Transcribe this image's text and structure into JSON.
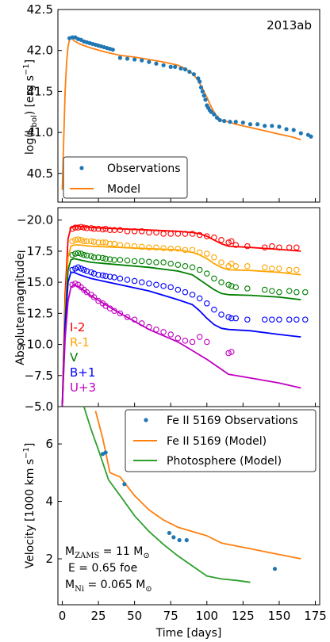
{
  "colors": {
    "obs": "#1f77b4",
    "model_orange": "#ff7f0e",
    "model_green": "#2ca02c",
    "I": "#ff0000",
    "R": "#ffa500",
    "V": "#008000",
    "B": "#0000ff",
    "U": "#c000c0"
  },
  "panel_top": {
    "title": "2013ab",
    "ylabel_parts": [
      "log(L",
      "bol",
      ") [erg s",
      "−1",
      "]"
    ],
    "yticks": [
      "40.5",
      "41.0",
      "41.5",
      "42.0",
      "42.5"
    ],
    "legend": {
      "obs": "Observations",
      "model": "Model"
    }
  },
  "panel_mid": {
    "ylabel": "Absolute magnitude",
    "yticks": [
      "−20.0",
      "−17.5",
      "−15.0",
      "−12.5",
      "−10.0",
      "−7.5",
      "−5.0"
    ],
    "bands": [
      "I-2",
      "R-1",
      "V",
      "B+1",
      "U+3"
    ]
  },
  "panel_bot": {
    "ylabel_parts": [
      "Velocity [1000 km  s",
      "−1",
      "]"
    ],
    "yticks": [
      "2",
      "4",
      "6"
    ],
    "legend": {
      "obs": "Fe II 5169 Observations",
      "fe_model": "Fe II 5169 (Model)",
      "phot_model": "Photosphere (Model)"
    },
    "annot": {
      "mzams_pre": "M",
      "mzams_sub": "ZAMS",
      "mzams_post": " = 11 M",
      "mzams_sun": "⊙",
      "energy": "E = 0.65 foe",
      "mni_pre": "M",
      "mni_sub": "Ni",
      "mni_post": " = 0.065 M",
      "mni_sun": "⊙"
    }
  },
  "xaxis": {
    "label": "Time [days]",
    "ticks": [
      "0",
      "25",
      "50",
      "75",
      "100",
      "125",
      "150",
      "175"
    ]
  },
  "chart_data": [
    {
      "type": "scatter",
      "title": "2013ab",
      "xlabel": "",
      "ylabel": "log(Lbol) [erg s−1]",
      "xlim": [
        -3,
        178
      ],
      "ylim": [
        40.15,
        42.5
      ],
      "series": [
        {
          "name": "Observations",
          "kind": "points",
          "x": [
            5,
            7,
            9,
            11,
            13,
            15,
            17,
            19,
            21,
            23,
            25,
            27,
            29,
            31,
            33,
            35,
            40,
            45,
            50,
            55,
            60,
            65,
            70,
            75,
            78,
            82,
            85,
            88,
            91,
            94,
            95,
            96,
            97,
            98,
            99,
            100,
            101,
            102,
            103,
            105,
            107,
            109,
            112,
            116,
            120,
            125,
            130,
            135,
            140,
            145,
            150,
            155,
            160,
            165,
            170,
            172
          ],
          "y": [
            42.15,
            42.16,
            42.16,
            42.14,
            42.13,
            42.11,
            42.1,
            42.09,
            42.08,
            42.07,
            42.06,
            42.05,
            42.04,
            42.03,
            42.02,
            42.01,
            41.91,
            41.9,
            41.89,
            41.88,
            41.86,
            41.84,
            41.82,
            41.8,
            41.8,
            41.78,
            41.77,
            41.74,
            41.71,
            41.66,
            41.62,
            41.55,
            41.5,
            41.45,
            41.4,
            41.33,
            41.3,
            41.27,
            41.25,
            41.22,
            41.18,
            41.15,
            41.14,
            41.13,
            41.13,
            41.12,
            41.1,
            41.1,
            41.08,
            41.08,
            41.07,
            41.04,
            41.03,
            40.99,
            40.97,
            40.95
          ]
        },
        {
          "name": "Model",
          "kind": "line",
          "x": [
            0,
            1,
            2,
            3,
            4,
            5,
            6,
            7,
            8,
            10,
            12,
            15,
            20,
            30,
            40,
            50,
            60,
            70,
            80,
            85,
            90,
            92,
            94,
            96,
            98,
            100,
            102,
            104,
            106,
            108,
            110,
            112,
            115,
            120,
            130,
            140,
            150,
            160,
            165
          ],
          "y": [
            40.3,
            40.9,
            41.5,
            41.85,
            42.05,
            42.13,
            42.16,
            42.15,
            42.12,
            42.1,
            42.08,
            42.06,
            42.03,
            41.98,
            41.94,
            41.92,
            41.89,
            41.86,
            41.82,
            41.78,
            41.72,
            41.68,
            41.63,
            41.57,
            41.5,
            41.43,
            41.35,
            41.28,
            41.22,
            41.18,
            41.15,
            41.14,
            41.13,
            41.1,
            41.06,
            41.02,
            40.98,
            40.94,
            40.91
          ]
        }
      ],
      "legend": "bottom-left"
    },
    {
      "type": "scatter",
      "xlabel": "",
      "ylabel": "Absolute magnitude",
      "xlim": [
        -3,
        178
      ],
      "ylim": [
        -5.0,
        -21.0
      ],
      "series": [
        {
          "name": "I-2",
          "color": "I",
          "obs_x": [
            7,
            9,
            11,
            13,
            15,
            17,
            20,
            22,
            25,
            28,
            30,
            33,
            36,
            40,
            45,
            50,
            55,
            60,
            65,
            70,
            75,
            80,
            85,
            90,
            95,
            100,
            105,
            110,
            115,
            117,
            120,
            128,
            140,
            145,
            150,
            157,
            162
          ],
          "obs_y": [
            -19.3,
            -19.4,
            -19.4,
            -19.45,
            -19.4,
            -19.35,
            -19.35,
            -19.3,
            -19.3,
            -19.25,
            -19.3,
            -19.2,
            -19.2,
            -19.2,
            -19.1,
            -19.1,
            -19.1,
            -19.0,
            -19.0,
            -18.9,
            -18.9,
            -18.9,
            -18.9,
            -18.9,
            -18.8,
            -18.7,
            -18.6,
            -18.4,
            -18.2,
            -18.3,
            -18.0,
            -17.9,
            -17.8,
            -17.9,
            -17.8,
            -17.8,
            -17.8
          ],
          "model_x": [
            0,
            2,
            4,
            6,
            8,
            12,
            20,
            40,
            60,
            80,
            90,
            95,
            100,
            105,
            110,
            115,
            130,
            150,
            165
          ],
          "model_y": [
            -5.0,
            -14.0,
            -18.5,
            -19.4,
            -19.5,
            -19.5,
            -19.4,
            -19.3,
            -19.2,
            -19.1,
            -19.0,
            -18.9,
            -18.7,
            -18.4,
            -18.1,
            -17.9,
            -17.8,
            -17.65,
            -17.5
          ]
        },
        {
          "name": "R-1",
          "color": "R",
          "obs_x": [
            7,
            9,
            11,
            13,
            15,
            17,
            20,
            22,
            25,
            28,
            30,
            33,
            36,
            40,
            45,
            50,
            55,
            60,
            65,
            70,
            75,
            80,
            85,
            90,
            95,
            100,
            105,
            110,
            115,
            117,
            120,
            128,
            140,
            145,
            150,
            157,
            162
          ],
          "obs_y": [
            -18.3,
            -18.4,
            -18.45,
            -18.4,
            -18.3,
            -18.3,
            -18.3,
            -18.25,
            -18.2,
            -18.2,
            -18.2,
            -18.1,
            -18.1,
            -18.0,
            -17.95,
            -17.9,
            -17.85,
            -17.8,
            -17.8,
            -17.75,
            -17.7,
            -17.7,
            -17.6,
            -17.6,
            -17.4,
            -17.3,
            -17.0,
            -16.6,
            -16.3,
            -16.5,
            -16.3,
            -16.3,
            -16.2,
            -16.1,
            -16.1,
            -16.0,
            -16.0
          ],
          "model_x": [
            0,
            2,
            4,
            6,
            8,
            12,
            20,
            40,
            60,
            80,
            90,
            95,
            100,
            105,
            110,
            115,
            130,
            150,
            165
          ],
          "model_y": [
            -5.0,
            -13.0,
            -17.0,
            -17.9,
            -18.0,
            -18.0,
            -17.9,
            -17.8,
            -17.7,
            -17.6,
            -17.4,
            -17.2,
            -16.9,
            -16.5,
            -16.2,
            -16.0,
            -15.95,
            -15.8,
            -15.6
          ]
        },
        {
          "name": "V",
          "color": "V",
          "obs_x": [
            7,
            9,
            11,
            13,
            15,
            17,
            20,
            22,
            25,
            28,
            30,
            33,
            36,
            40,
            45,
            50,
            55,
            60,
            65,
            70,
            75,
            80,
            85,
            90,
            95,
            100,
            105,
            110,
            115,
            117,
            120,
            128,
            140,
            145,
            150,
            157,
            162,
            168
          ],
          "obs_y": [
            -17.2,
            -17.3,
            -17.35,
            -17.3,
            -17.2,
            -17.15,
            -17.1,
            -17.0,
            -17.0,
            -16.95,
            -16.9,
            -16.85,
            -16.8,
            -16.8,
            -16.75,
            -16.7,
            -16.7,
            -16.65,
            -16.6,
            -16.6,
            -16.5,
            -16.4,
            -16.3,
            -16.2,
            -16.0,
            -15.7,
            -15.3,
            -15.0,
            -14.8,
            -14.7,
            -14.6,
            -14.5,
            -14.4,
            -14.3,
            -14.2,
            -14.3,
            -14.2,
            -14.2
          ],
          "model_x": [
            0,
            2,
            4,
            6,
            8,
            12,
            20,
            40,
            60,
            80,
            90,
            95,
            100,
            105,
            110,
            115,
            130,
            150,
            165
          ],
          "model_y": [
            -5.0,
            -12.0,
            -16.0,
            -16.8,
            -16.9,
            -16.8,
            -16.6,
            -16.4,
            -16.2,
            -15.9,
            -15.6,
            -15.2,
            -14.8,
            -14.4,
            -14.1,
            -14.0,
            -13.95,
            -13.8,
            -13.6
          ]
        },
        {
          "name": "B+1",
          "color": "B",
          "obs_x": [
            7,
            9,
            11,
            13,
            15,
            17,
            20,
            22,
            25,
            28,
            30,
            33,
            36,
            40,
            45,
            50,
            55,
            60,
            65,
            70,
            75,
            80,
            85,
            90,
            95,
            100,
            105,
            110,
            115,
            117,
            120,
            128,
            140,
            145,
            150,
            157,
            162,
            168
          ],
          "obs_y": [
            -16.0,
            -16.1,
            -16.2,
            -16.1,
            -16.0,
            -15.9,
            -15.8,
            -15.7,
            -15.6,
            -15.55,
            -15.5,
            -15.45,
            -15.4,
            -15.3,
            -15.2,
            -15.1,
            -15.0,
            -14.9,
            -14.8,
            -14.7,
            -14.6,
            -14.4,
            -14.2,
            -14.0,
            -13.7,
            -13.3,
            -12.8,
            -12.4,
            -12.2,
            -12.1,
            -12.1,
            -12.0,
            -12.0,
            -12.0,
            -12.0,
            -12.0,
            -12.0,
            -12.0
          ],
          "model_x": [
            0,
            2,
            4,
            6,
            8,
            12,
            20,
            40,
            60,
            80,
            90,
            95,
            100,
            105,
            110,
            115,
            130,
            150,
            165
          ],
          "model_y": [
            -5.0,
            -11.5,
            -15.0,
            -15.8,
            -15.8,
            -15.6,
            -15.3,
            -14.8,
            -14.3,
            -13.6,
            -13.2,
            -12.7,
            -12.1,
            -11.6,
            -11.3,
            -11.2,
            -11.1,
            -10.8,
            -10.6
          ]
        },
        {
          "name": "U+3",
          "color": "U",
          "obs_x": [
            7,
            9,
            11,
            13,
            15,
            17,
            20,
            22,
            25,
            28,
            30,
            33,
            36,
            40,
            45,
            50,
            55,
            60,
            65,
            70,
            75,
            80,
            85,
            90,
            95,
            100,
            115,
            117
          ],
          "obs_y": [
            -14.8,
            -14.9,
            -14.8,
            -14.6,
            -14.4,
            -14.2,
            -14.0,
            -13.8,
            -13.5,
            -13.3,
            -13.1,
            -12.9,
            -12.7,
            -12.5,
            -12.2,
            -12.0,
            -11.7,
            -11.4,
            -11.2,
            -11.0,
            -10.8,
            -10.5,
            -10.3,
            -10.2,
            -10.6,
            -10.2,
            -9.3,
            -9.4
          ],
          "model_x": [
            0,
            2,
            4,
            6,
            8,
            12,
            20,
            40,
            60,
            80,
            90,
            100,
            110,
            115,
            130,
            150,
            165
          ],
          "model_y": [
            -5.0,
            -10.5,
            -13.5,
            -14.6,
            -14.8,
            -14.6,
            -13.9,
            -12.5,
            -11.2,
            -10.2,
            -9.5,
            -8.8,
            -8.0,
            -7.6,
            -7.3,
            -6.9,
            -6.5
          ]
        }
      ]
    },
    {
      "type": "line",
      "xlabel": "Time [days]",
      "ylabel": "Velocity [1000 km s−1]",
      "xlim": [
        -3,
        178
      ],
      "ylim": [
        0.4,
        7.3
      ],
      "series": [
        {
          "name": "Fe II 5169 Observations",
          "kind": "points",
          "color": "obs",
          "x": [
            28,
            30,
            43,
            74,
            77,
            81,
            86,
            147
          ],
          "y": [
            5.65,
            5.7,
            4.6,
            2.9,
            2.75,
            2.65,
            2.65,
            1.65
          ]
        },
        {
          "name": "Fe II 5169 (Model)",
          "kind": "line",
          "color": "model_orange",
          "x": [
            23,
            28,
            33,
            40,
            50,
            60,
            70,
            80,
            90,
            100,
            110,
            120,
            130,
            140,
            150,
            160,
            165
          ],
          "y": [
            7.15,
            6.2,
            5.0,
            4.85,
            4.2,
            3.7,
            3.35,
            3.1,
            2.95,
            2.8,
            2.55,
            2.45,
            2.35,
            2.25,
            2.15,
            2.05,
            2.0
          ]
        },
        {
          "name": "Photosphere (Model)",
          "kind": "line",
          "color": "model_green",
          "x": [
            15,
            20,
            25,
            32,
            40,
            50,
            60,
            70,
            80,
            90,
            100,
            110,
            120,
            130
          ],
          "y": [
            7.3,
            6.5,
            5.8,
            4.75,
            4.2,
            3.5,
            2.95,
            2.5,
            2.1,
            1.75,
            1.4,
            1.3,
            1.25,
            1.18
          ]
        }
      ],
      "legend": "top-right"
    }
  ]
}
